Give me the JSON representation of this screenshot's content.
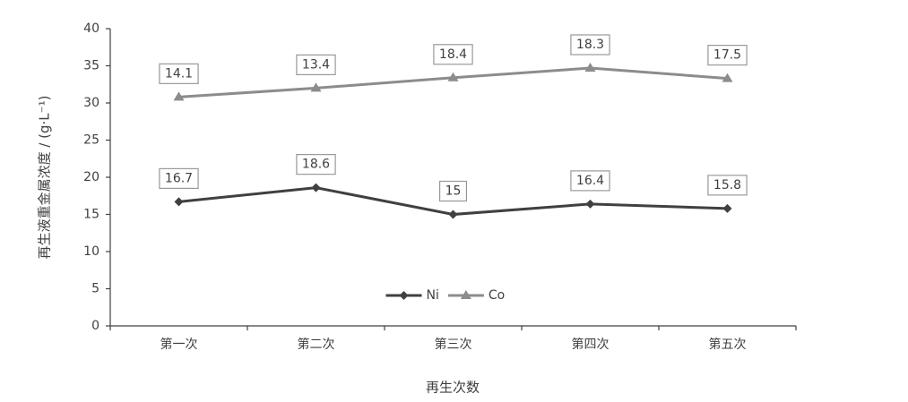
{
  "chart_data": {
    "type": "line",
    "stacked": true,
    "y_label": "再生液重金属浓度 / (g·L⁻¹)",
    "x_label": "再生次数",
    "categories": [
      "第一次",
      "第二次",
      "第三次",
      "第四次",
      "第五次"
    ],
    "series": [
      {
        "name": "Ni",
        "color": "#404040",
        "marker": "diamond",
        "values": [
          16.7,
          18.6,
          15,
          16.4,
          15.8
        ]
      },
      {
        "name": "Co",
        "color": "#8c8c8c",
        "marker": "triangle",
        "values": [
          14.1,
          13.4,
          18.4,
          18.3,
          17.5
        ]
      }
    ],
    "ylim": [
      0,
      40
    ],
    "yticks": [
      0,
      5,
      10,
      15,
      20,
      25,
      30,
      35,
      40
    ],
    "grid": false,
    "legend": "lower center",
    "data_labels": true
  }
}
